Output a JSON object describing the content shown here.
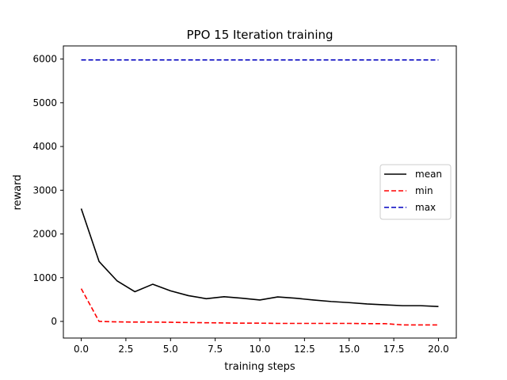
{
  "chart_data": {
    "type": "line",
    "title": "PPO 15 Iteration training",
    "xlabel": "training steps",
    "ylabel": "reward",
    "xlim": [
      -1,
      21
    ],
    "ylim": [
      -380,
      6300
    ],
    "xticks": [
      0,
      2.5,
      5,
      7.5,
      10,
      12.5,
      15,
      17.5,
      20
    ],
    "xtick_labels": [
      "0.0",
      "2.5",
      "5.0",
      "7.5",
      "10.0",
      "12.5",
      "15.0",
      "17.5",
      "20.0"
    ],
    "yticks": [
      0,
      1000,
      2000,
      3000,
      4000,
      5000,
      6000
    ],
    "ytick_labels": [
      "0",
      "1000",
      "2000",
      "3000",
      "4000",
      "5000",
      "6000"
    ],
    "grid": false,
    "legend_position": "center-right",
    "x": [
      0,
      1,
      2,
      3,
      4,
      5,
      6,
      7,
      8,
      9,
      10,
      11,
      12,
      13,
      14,
      15,
      16,
      17,
      18,
      19,
      20
    ],
    "series": [
      {
        "name": "mean",
        "color": "#000000",
        "dash": "solid",
        "values": [
          2580,
          1370,
          930,
          680,
          850,
          700,
          590,
          520,
          565,
          530,
          490,
          560,
          530,
          490,
          455,
          430,
          400,
          380,
          360,
          360,
          340
        ]
      },
      {
        "name": "min",
        "color": "#ff0000",
        "dash": "dashed",
        "values": [
          750,
          0,
          -10,
          -15,
          -15,
          -20,
          -25,
          -30,
          -35,
          -40,
          -40,
          -45,
          -45,
          -45,
          -45,
          -45,
          -50,
          -50,
          -80,
          -80,
          -80
        ]
      },
      {
        "name": "max",
        "color": "#0000bf",
        "dash": "dashed",
        "values": [
          5980,
          5980,
          5980,
          5980,
          5980,
          5980,
          5980,
          5980,
          5980,
          5980,
          5980,
          5980,
          5980,
          5980,
          5980,
          5980,
          5980,
          5980,
          5980,
          5980,
          5980
        ]
      }
    ]
  }
}
